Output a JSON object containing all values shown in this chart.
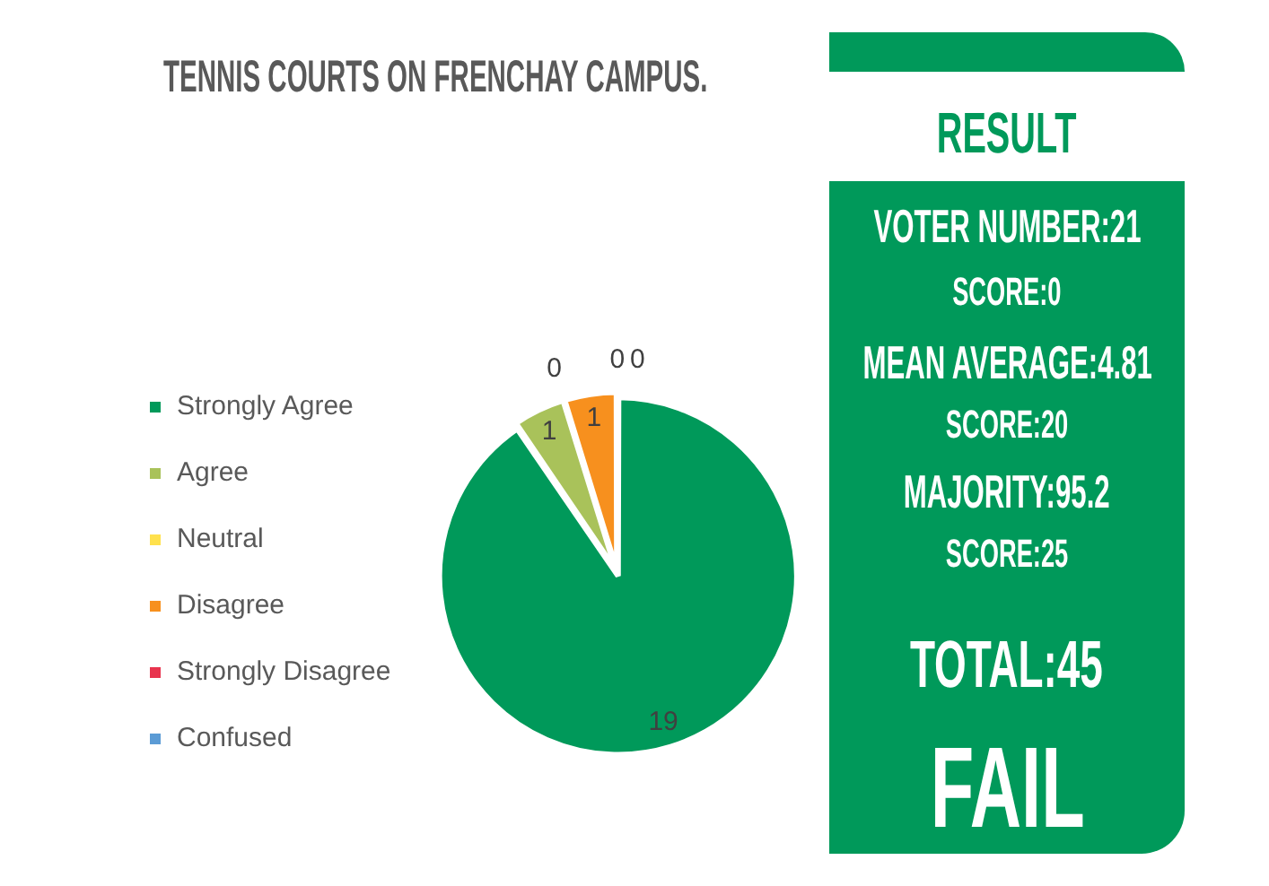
{
  "chart_data": [
    {
      "type": "pie",
      "title": "TENNIS COURTS ON FRENCHAY CAMPUS.",
      "categories": [
        "Strongly Agree",
        "Agree",
        "Neutral",
        "Disagree",
        "Strongly Disagree",
        "Confused"
      ],
      "values": [
        19,
        1,
        0,
        1,
        0,
        0
      ],
      "value_labels": [
        "19",
        "1",
        "0",
        "1",
        "0",
        "0"
      ],
      "colors": [
        "#00995a",
        "#a9c25a",
        "#ffe14d",
        "#f7901e",
        "#e8344e",
        "#5b9bd5"
      ],
      "legend": "left"
    },
    {
      "type": "other",
      "title": "RESULT",
      "color": "#00995a",
      "annotations": [
        "VOTER NUMBER:21",
        "SCORE:0",
        "MEAN AVERAGE:4.81",
        "SCORE:20",
        "MAJORITY:95.2",
        "SCORE:25",
        "TOTAL:45",
        "FAIL"
      ]
    }
  ]
}
